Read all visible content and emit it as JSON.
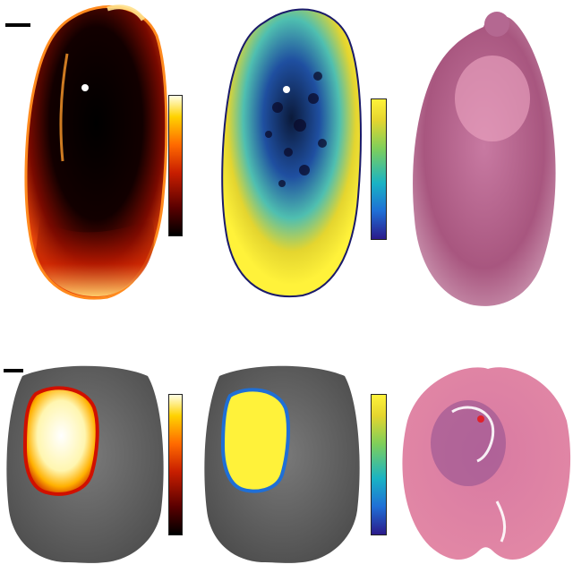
{
  "figure": {
    "rows": [
      {
        "name": "top-row",
        "panels": [
          {
            "name": "heat-map",
            "colormap": "hot"
          },
          {
            "name": "parametric-map",
            "colormap": "parula"
          },
          {
            "name": "histology",
            "stain": "H&E"
          }
        ]
      },
      {
        "name": "bottom-row",
        "panels": [
          {
            "name": "heat-overlay",
            "colormap": "hot"
          },
          {
            "name": "parametric-overlay",
            "colormap": "parula"
          },
          {
            "name": "histology",
            "stain": "H&E"
          }
        ]
      }
    ],
    "colors": {
      "hot_colormap": [
        "#000000",
        "#5a0000",
        "#c81e00",
        "#ff6a00",
        "#ffd200",
        "#ffffe6"
      ],
      "parula_colormap": [
        "#2b1a8a",
        "#1f6fd6",
        "#19b3c4",
        "#7fcf5a",
        "#e4d52f",
        "#fff23a"
      ],
      "he_stain": [
        "#b15a86",
        "#d88aa4",
        "#e98aa0"
      ]
    }
  }
}
